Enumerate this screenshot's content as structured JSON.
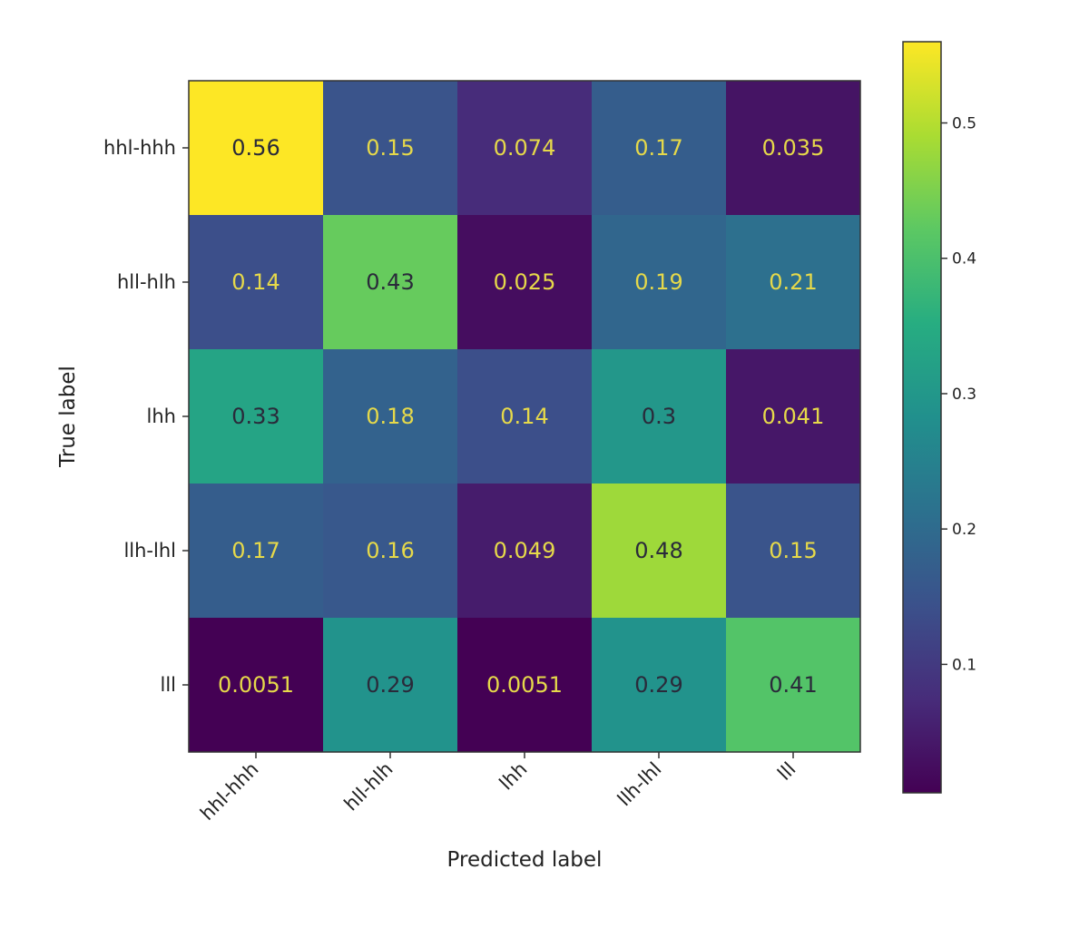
{
  "chart_data": {
    "type": "heatmap",
    "title": "",
    "xlabel": "Predicted label",
    "ylabel": "True label",
    "x_categories": [
      "hhl-hhh",
      "hll-hlh",
      "lhh",
      "llh-lhl",
      "lll"
    ],
    "y_categories": [
      "hhl-hhh",
      "hll-hlh",
      "lhh",
      "llh-lhl",
      "lll"
    ],
    "values": [
      [
        0.56,
        0.15,
        0.074,
        0.17,
        0.035
      ],
      [
        0.14,
        0.43,
        0.025,
        0.19,
        0.21
      ],
      [
        0.33,
        0.18,
        0.14,
        0.3,
        0.041
      ],
      [
        0.17,
        0.16,
        0.049,
        0.48,
        0.15
      ],
      [
        0.0051,
        0.29,
        0.0051,
        0.29,
        0.41
      ]
    ],
    "value_labels": [
      [
        "0.56",
        "0.15",
        "0.074",
        "0.17",
        "0.035"
      ],
      [
        "0.14",
        "0.43",
        "0.025",
        "0.19",
        "0.21"
      ],
      [
        "0.33",
        "0.18",
        "0.14",
        "0.3",
        "0.041"
      ],
      [
        "0.17",
        "0.16",
        "0.049",
        "0.48",
        "0.15"
      ],
      [
        "0.0051",
        "0.29",
        "0.0051",
        "0.29",
        "0.41"
      ]
    ],
    "colormap": "viridis",
    "colorbar": {
      "range": [
        0.0051,
        0.56
      ],
      "ticks": [
        0.1,
        0.2,
        0.3,
        0.4,
        0.5
      ],
      "tick_labels": [
        "0.1",
        "0.2",
        "0.3",
        "0.4",
        "0.5"
      ]
    },
    "text_colors": {
      "light": "#e6d94a",
      "dark": "#2a2a3a"
    },
    "legend": "colorbar-right",
    "grid": false
  }
}
